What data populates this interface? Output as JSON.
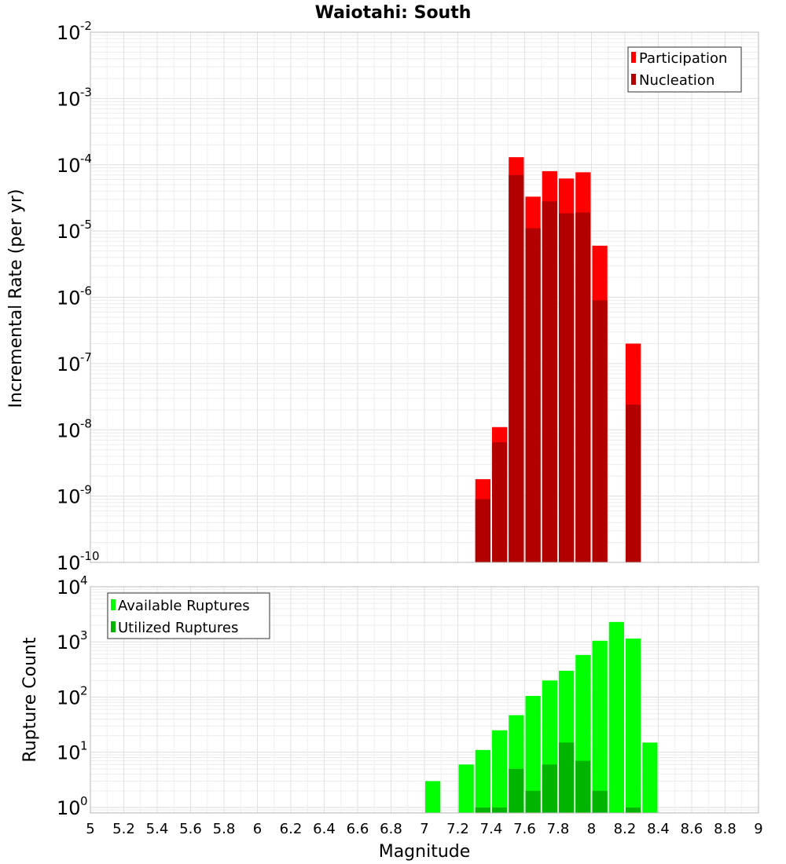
{
  "title": "Waiotahi: South",
  "chart_data": [
    {
      "type": "bar",
      "name": "rate-panel",
      "log_scale_y": true,
      "ylabel": "Incremental Rate (per yr)",
      "ylim_exp": [
        -10,
        -2
      ],
      "xlim": [
        5,
        9
      ],
      "bin_width": 0.1,
      "legend": {
        "position": "top-right",
        "entries": [
          "Participation",
          "Nucleation"
        ]
      },
      "grid": true,
      "series": [
        {
          "name": "Participation",
          "color": "#ff0000",
          "x": [
            7.35,
            7.45,
            7.55,
            7.65,
            7.75,
            7.85,
            7.95,
            8.05,
            8.25
          ],
          "values": [
            1.8e-09,
            1.1e-08,
            0.00013,
            3.3e-05,
            8e-05,
            6.2e-05,
            7.7e-05,
            6e-06,
            2e-07
          ]
        },
        {
          "name": "Nucleation",
          "color": "#b20000",
          "x": [
            7.35,
            7.45,
            7.55,
            7.65,
            7.75,
            7.85,
            7.95,
            8.05,
            8.25
          ],
          "values": [
            9e-10,
            6.5e-09,
            7e-05,
            1.1e-05,
            2.8e-05,
            1.85e-05,
            1.9e-05,
            9e-07,
            2.4e-08
          ]
        }
      ]
    },
    {
      "type": "bar",
      "name": "count-panel",
      "log_scale_y": true,
      "ylabel": "Rupture Count",
      "ylim_exp": [
        -0.1,
        4
      ],
      "tick_exps": [
        0,
        1,
        2,
        3,
        4
      ],
      "xlim": [
        5,
        9
      ],
      "bin_width": 0.1,
      "xlabel": "Magnitude",
      "xticks": [
        "5",
        "5.2",
        "5.4",
        "5.6",
        "5.8",
        "6",
        "6.2",
        "6.4",
        "6.6",
        "6.8",
        "7",
        "7.2",
        "7.4",
        "7.6",
        "7.8",
        "8",
        "8.2",
        "8.4",
        "8.6",
        "8.8",
        "9"
      ],
      "legend": {
        "position": "top-left",
        "entries": [
          "Available Ruptures",
          "Utilized Ruptures"
        ]
      },
      "grid": true,
      "series": [
        {
          "name": "Available Ruptures",
          "color": "#00ff00",
          "x": [
            7.05,
            7.25,
            7.35,
            7.45,
            7.55,
            7.65,
            7.75,
            7.85,
            7.95,
            8.05,
            8.15,
            8.25,
            8.35
          ],
          "values": [
            3,
            6,
            11,
            25,
            47,
            105,
            200,
            300,
            580,
            1050,
            2300,
            1150,
            15
          ]
        },
        {
          "name": "Utilized Ruptures",
          "color": "#00b400",
          "x": [
            7.35,
            7.45,
            7.55,
            7.65,
            7.75,
            7.85,
            7.95,
            8.05,
            8.25
          ],
          "values": [
            1,
            1,
            5,
            2,
            6,
            15,
            7,
            2,
            1
          ]
        }
      ]
    }
  ]
}
